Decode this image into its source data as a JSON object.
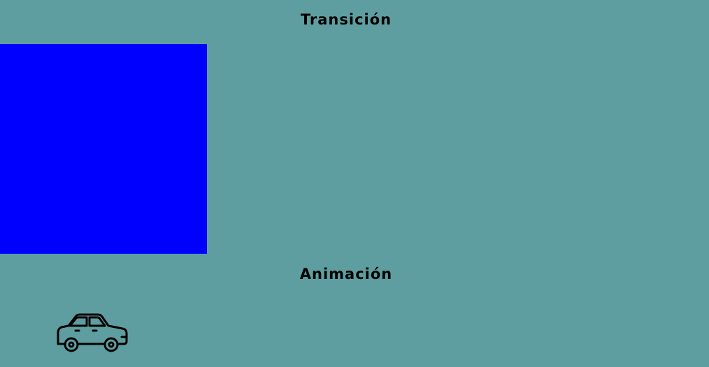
{
  "sections": {
    "transition": {
      "title": "Transición"
    },
    "animation": {
      "title": "Animación",
      "icon": "car-icon"
    }
  },
  "colors": {
    "background": "#5f9ea0",
    "box": "#0000ff",
    "text": "#000000"
  }
}
